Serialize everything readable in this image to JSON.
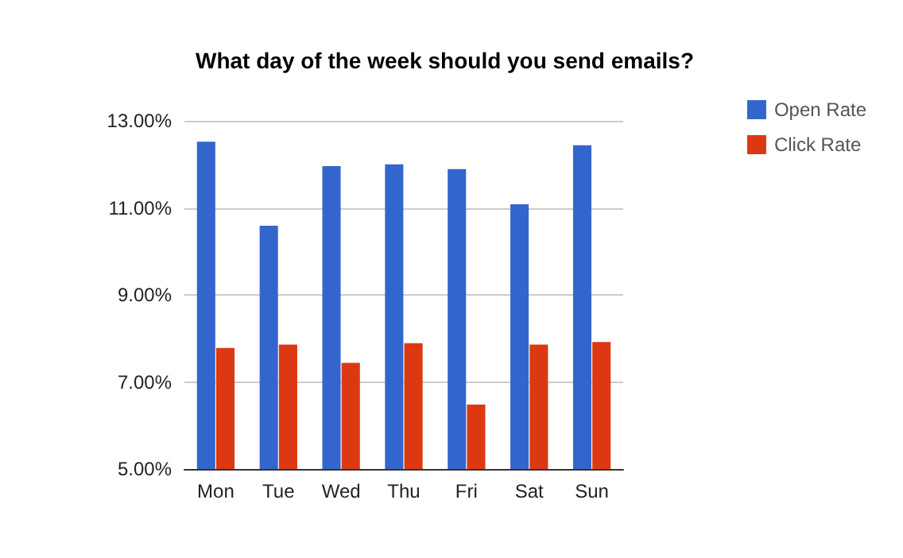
{
  "chart_data": {
    "type": "bar",
    "title": "What day of the week should you send emails?",
    "categories": [
      "Mon",
      "Tue",
      "Wed",
      "Thu",
      "Fri",
      "Sat",
      "Sun"
    ],
    "series": [
      {
        "name": "Open Rate",
        "color": "#3366cc",
        "values": [
          12.52,
          10.59,
          11.96,
          12.0,
          11.89,
          11.08,
          12.44
        ]
      },
      {
        "name": "Click Rate",
        "color": "#dc3912",
        "values": [
          7.78,
          7.86,
          7.44,
          7.89,
          6.48,
          7.86,
          7.92
        ]
      }
    ],
    "ylim": [
      5,
      13
    ],
    "yticks": [
      {
        "value": 5,
        "label": "5.00%"
      },
      {
        "value": 7,
        "label": "7.00%"
      },
      {
        "value": 9,
        "label": "9.00%"
      },
      {
        "value": 11,
        "label": "11.00%"
      },
      {
        "value": 13,
        "label": "13.00%"
      }
    ],
    "grid": "y",
    "legend": "right"
  }
}
